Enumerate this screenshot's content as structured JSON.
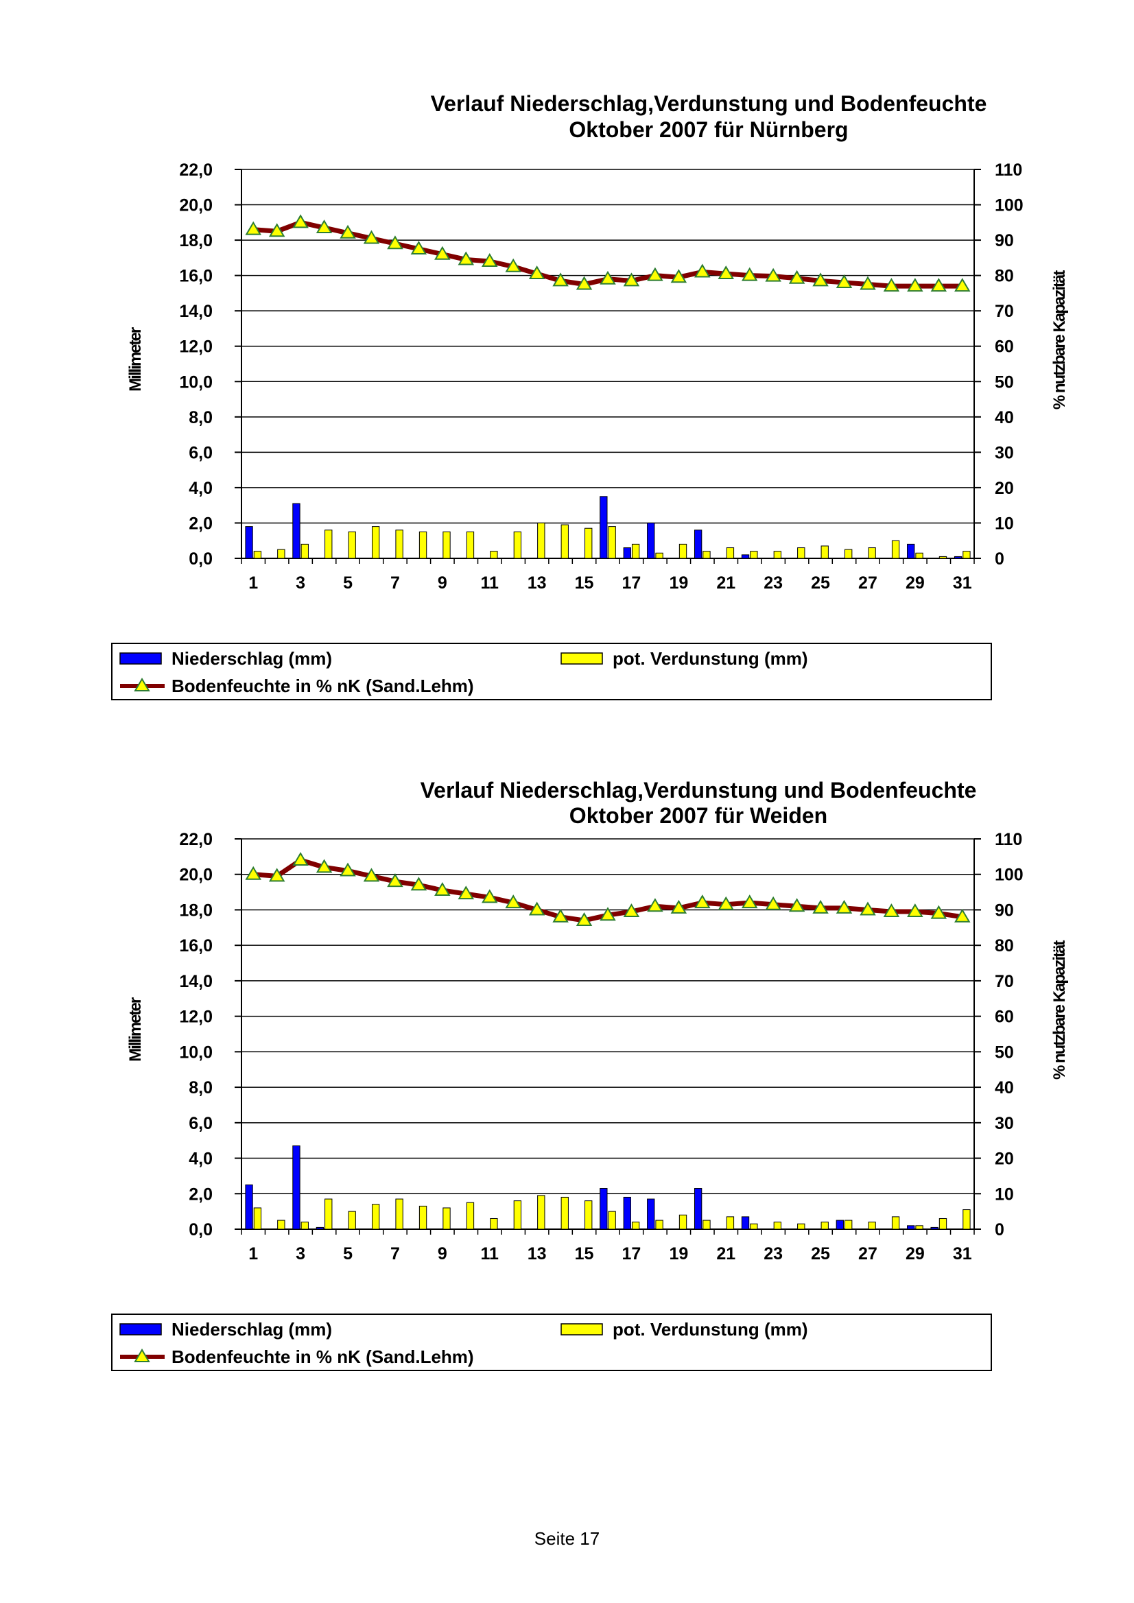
{
  "footer": {
    "page_label": "Seite 17"
  },
  "colors": {
    "precipitation": "#0000ff",
    "evaporation": "#ffff00",
    "soil_line": "#800000",
    "marker": "#ffff00",
    "grid": "#000000"
  },
  "chart_data": [
    {
      "type": "bar+line",
      "title": [
        "Verlauf Niederschlag,Verdunstung und Bodenfeuchte",
        "Oktober 2007 für Nürnberg"
      ],
      "ylabel": "Millimeter",
      "y2label": "% nutzbare Kapazität",
      "ylim": [
        0,
        22
      ],
      "y2lim": [
        0,
        110
      ],
      "yticks": [
        "0,0",
        "2,0",
        "4,0",
        "6,0",
        "8,0",
        "10,0",
        "12,0",
        "14,0",
        "16,0",
        "18,0",
        "20,0",
        "22,0"
      ],
      "y2ticks": [
        "0",
        "10",
        "20",
        "30",
        "40",
        "50",
        "60",
        "70",
        "80",
        "90",
        "100",
        "110"
      ],
      "xticks": [
        "1",
        "3",
        "5",
        "7",
        "9",
        "11",
        "13",
        "15",
        "17",
        "19",
        "21",
        "23",
        "25",
        "27",
        "29",
        "31"
      ],
      "grid": true,
      "legend_position": "bottom",
      "legend": {
        "precipitation": "Niederschlag (mm)",
        "evaporation": "pot. Verdunstung (mm)",
        "soil": "Bodenfeuchte in % nK (Sand.Lehm)"
      },
      "precipitation": [
        1.8,
        0,
        3.1,
        0,
        0,
        0,
        0,
        0,
        0,
        0,
        0,
        0,
        0,
        0,
        0,
        3.5,
        0.6,
        2.0,
        0,
        1.6,
        0,
        0.2,
        0,
        0,
        0,
        0,
        0,
        0,
        0.8,
        0,
        0.1
      ],
      "evaporation": [
        0.4,
        0.5,
        0.8,
        1.6,
        1.5,
        1.8,
        1.6,
        1.5,
        1.5,
        1.5,
        0.4,
        1.5,
        2.0,
        1.9,
        1.7,
        1.8,
        0.8,
        0.3,
        0.8,
        0.4,
        0.6,
        0.4,
        0.4,
        0.6,
        0.7,
        0.5,
        0.6,
        1.0,
        0.3,
        0.1,
        0.4
      ],
      "soil_moisture": [
        93,
        92.5,
        95,
        93.5,
        92,
        90.5,
        89,
        87.5,
        86,
        84.5,
        84,
        82.5,
        80.5,
        78.5,
        77.5,
        79,
        78.5,
        80,
        79.5,
        81,
        80.5,
        80,
        79.8,
        79.2,
        78.5,
        78,
        77.5,
        77,
        77,
        77,
        77
      ]
    },
    {
      "type": "bar+line",
      "title": [
        "Verlauf Niederschlag,Verdunstung und Bodenfeuchte",
        "Oktober 2007 für Weiden"
      ],
      "ylabel": "Millimeter",
      "y2label": "% nutzbare Kapazität",
      "ylim": [
        0,
        22
      ],
      "y2lim": [
        0,
        110
      ],
      "yticks": [
        "0,0",
        "2,0",
        "4,0",
        "6,0",
        "8,0",
        "10,0",
        "12,0",
        "14,0",
        "16,0",
        "18,0",
        "20,0",
        "22,0"
      ],
      "y2ticks": [
        "0",
        "10",
        "20",
        "30",
        "40",
        "50",
        "60",
        "70",
        "80",
        "90",
        "100",
        "110"
      ],
      "xticks": [
        "1",
        "3",
        "5",
        "7",
        "9",
        "11",
        "13",
        "15",
        "17",
        "19",
        "21",
        "23",
        "25",
        "27",
        "29",
        "31"
      ],
      "grid": true,
      "legend_position": "bottom",
      "legend": {
        "precipitation": "Niederschlag (mm)",
        "evaporation": "pot. Verdunstung (mm)",
        "soil": "Bodenfeuchte in % nK (Sand.Lehm)"
      },
      "precipitation": [
        2.5,
        0,
        4.7,
        0.1,
        0,
        0,
        0,
        0,
        0,
        0,
        0,
        0,
        0,
        0,
        0,
        2.3,
        1.8,
        1.7,
        0,
        2.3,
        0,
        0.7,
        0,
        0,
        0,
        0.5,
        0,
        0,
        0.2,
        0.1,
        0
      ],
      "evaporation": [
        1.2,
        0.5,
        0.4,
        1.7,
        1.0,
        1.4,
        1.7,
        1.3,
        1.2,
        1.5,
        0.6,
        1.6,
        1.9,
        1.8,
        1.6,
        1.0,
        0.4,
        0.5,
        0.8,
        0.5,
        0.7,
        0.3,
        0.4,
        0.3,
        0.4,
        0.5,
        0.4,
        0.7,
        0.2,
        0.6,
        1.1
      ],
      "soil_moisture": [
        100,
        99.5,
        104,
        102,
        101,
        99.5,
        98,
        97,
        95.5,
        94.5,
        93.5,
        92,
        90,
        88,
        87,
        88.5,
        89.5,
        91,
        90.5,
        92,
        91.5,
        92,
        91.5,
        91,
        90.5,
        90.5,
        90,
        89.5,
        89.5,
        89,
        88
      ]
    }
  ]
}
